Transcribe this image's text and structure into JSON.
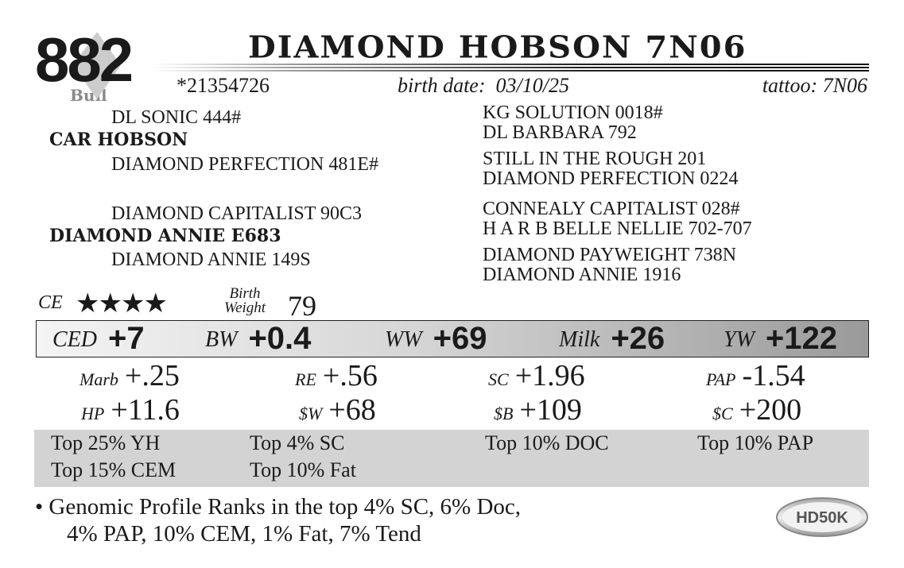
{
  "lot_number": "882",
  "category": "Bull",
  "name": "DIAMOND HOBSON 7N06",
  "registration": "*21354726",
  "birth_date": {
    "label": "birth date:",
    "value": "03/10/25"
  },
  "tattoo": {
    "label": "tattoo:",
    "value": "7N06"
  },
  "pedigree": {
    "sire": "CAR HOBSON",
    "sire_sire": "DL SONIC 444#",
    "sire_dam": "DIAMOND PERFECTION 481E#",
    "dam": "DIAMOND ANNIE E683",
    "dam_sire": "DIAMOND CAPITALIST 90C3",
    "dam_dam": "DIAMOND ANNIE 149S",
    "great_grandparents": [
      "KG SOLUTION 0018#",
      "DL BARBARA 792",
      "STILL IN THE ROUGH 201",
      "DIAMOND PERFECTION 0224",
      "CONNEALY CAPITALIST 028#",
      "H A R B BELLE NELLIE 702-707",
      "DIAMOND PAYWEIGHT 738N",
      "DIAMOND ANNIE 1916"
    ]
  },
  "calving_ease": {
    "label": "CE",
    "stars": 4,
    "stars_text": "★★★★"
  },
  "birth_weight": {
    "label_1": "Birth",
    "label_2": "Weight",
    "value": "79"
  },
  "epds_main": [
    {
      "label": "CED",
      "value": "+7"
    },
    {
      "label": "BW",
      "value": "+0.4"
    },
    {
      "label": "WW",
      "value": "+69"
    },
    {
      "label": "Milk",
      "value": "+26"
    },
    {
      "label": "YW",
      "value": "+122"
    }
  ],
  "epds_secondary": [
    {
      "label": "Marb",
      "value": "+.25"
    },
    {
      "label": "RE",
      "value": "+.56"
    },
    {
      "label": "SC",
      "value": "+1.96"
    },
    {
      "label": "PAP",
      "value": "-1.54"
    },
    {
      "label": "HP",
      "value": "+11.6"
    },
    {
      "label": "$W",
      "value": "+68"
    },
    {
      "label": "$B",
      "value": "+109"
    },
    {
      "label": "$C",
      "value": "+200"
    }
  ],
  "ranks": [
    "Top 25% YH",
    "Top 4% SC",
    "Top 10% DOC",
    "Top 10% PAP",
    "Top 15% CEM",
    "Top 10% Fat"
  ],
  "notes": {
    "line1": "• Genomic Profile Ranks in the top 4% SC, 6% Doc,",
    "line2": "4% PAP, 10% CEM, 1% Fat, 7% Tend"
  },
  "logo_text": "HD50K",
  "colors": {
    "ink": "#1a1a1a",
    "rank_box": "#d3d3d3",
    "bull_label": "#8a8a8a"
  }
}
